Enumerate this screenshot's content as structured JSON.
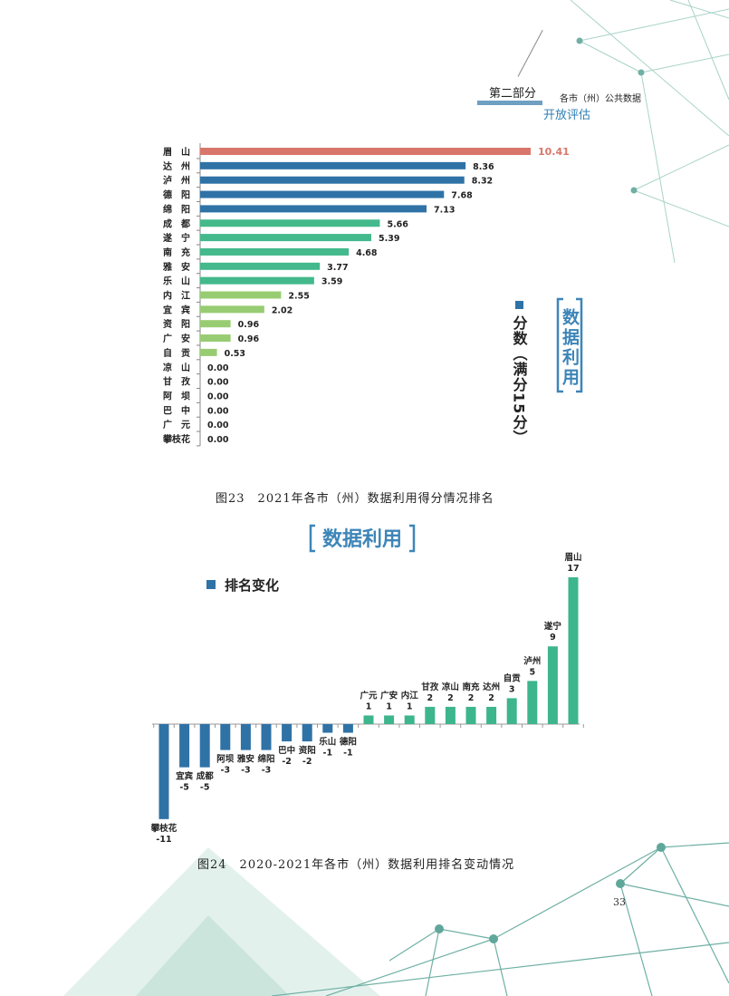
{
  "header": {
    "section": "第二部分",
    "subtitle_line1": "各市（州）公共数据",
    "subtitle_line2": "开放评估"
  },
  "figure23": {
    "caption": "图23　2021年各市（州）数据利用得分情况排名",
    "badge": "数据利用",
    "legend_label": "分数（满分15分）"
  },
  "figure24": {
    "caption": "图24　2020-2021年各市（州）数据利用排名变动情况",
    "badge": "数据利用",
    "legend_label": "排名变化"
  },
  "page_number": "33",
  "colors": {
    "top": "#d9766b",
    "dark_blue": "#2f72a6",
    "teal": "#43b98c",
    "light_green": "#98cc72",
    "change_negative": "#2f72a6",
    "change_positive": "#3db58d",
    "badge": "#3d85b8",
    "decor": "#5fa79a"
  },
  "chart_data": [
    {
      "type": "bar",
      "orientation": "horizontal",
      "categories": [
        "眉山",
        "达州",
        "泸州",
        "德阳",
        "绵阳",
        "成都",
        "遂宁",
        "南充",
        "雅安",
        "乐山",
        "内江",
        "宜宾",
        "资阳",
        "广安",
        "自贡",
        "凉山",
        "甘孜",
        "阿坝",
        "巴中",
        "广元",
        "攀枝花"
      ],
      "labels": [
        "眉　山",
        "达　州",
        "泸　州",
        "德　阳",
        "绵　阳",
        "成　都",
        "遂　宁",
        "南　充",
        "雅　安",
        "乐　山",
        "内　江",
        "宜　宾",
        "资　阳",
        "广　安",
        "自　贡",
        "凉　山",
        "甘　孜",
        "阿　坝",
        "巴　中",
        "广　元",
        "攀枝花"
      ],
      "values": [
        10.41,
        8.36,
        8.32,
        7.68,
        7.13,
        5.66,
        5.39,
        4.68,
        3.77,
        3.59,
        2.55,
        2.02,
        0.96,
        0.96,
        0.53,
        0.0,
        0.0,
        0.0,
        0.0,
        0.0,
        0.0
      ],
      "value_labels": [
        "10.41",
        "8.36",
        "8.32",
        "7.68",
        "7.13",
        "5.66",
        "5.39",
        "4.68",
        "3.77",
        "3.59",
        "2.55",
        "2.02",
        "0.96",
        "0.96",
        "0.53",
        "0.00",
        "0.00",
        "0.00",
        "0.00",
        "0.00",
        "0.00"
      ],
      "bar_color_groups": [
        "top",
        "dark_blue",
        "dark_blue",
        "dark_blue",
        "dark_blue",
        "teal",
        "teal",
        "teal",
        "teal",
        "teal",
        "light_green",
        "light_green",
        "light_green",
        "light_green",
        "light_green",
        "light_green",
        "light_green",
        "light_green",
        "light_green",
        "light_green",
        "light_green"
      ],
      "xlim": [
        0,
        10.41
      ],
      "legend": "分数（满分15分）"
    },
    {
      "type": "bar",
      "orientation": "vertical",
      "categories": [
        "攀枝花",
        "宜宾",
        "成都",
        "阿坝",
        "雅安",
        "绵阳",
        "巴中",
        "资阳",
        "乐山",
        "德阳",
        "广元",
        "广安",
        "内江",
        "甘孜",
        "凉山",
        "南充",
        "达州",
        "自贡",
        "泸州",
        "遂宁",
        "眉山"
      ],
      "values": [
        -11,
        -5,
        -5,
        -3,
        -3,
        -3,
        -2,
        -2,
        -1,
        -1,
        1,
        1,
        1,
        2,
        2,
        2,
        2,
        3,
        5,
        9,
        17
      ],
      "value_labels": [
        "-11",
        "-5",
        "-5",
        "-3",
        "-3",
        "-3",
        "-2",
        "-2",
        "-1",
        "-1",
        "1",
        "1",
        "1",
        "2",
        "2",
        "2",
        "2",
        "3",
        "5",
        "9",
        "17"
      ],
      "ylim": [
        -11,
        17
      ],
      "legend": "排名变化"
    }
  ]
}
